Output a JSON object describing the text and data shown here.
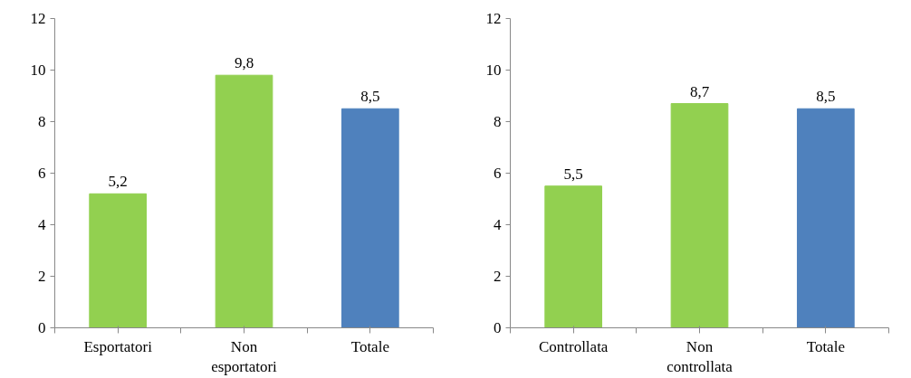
{
  "chart_data": [
    {
      "type": "bar",
      "categories": [
        "Esportatori",
        "Non\nesportatori",
        "Totale"
      ],
      "values": [
        5.2,
        9.8,
        8.5
      ],
      "colors": [
        "#92d050",
        "#92d050",
        "#4f81bd"
      ],
      "value_labels": [
        "5,2",
        "9,8",
        "8,5"
      ],
      "ylim": [
        0,
        12
      ],
      "yticks": [
        0,
        2,
        4,
        6,
        8,
        10,
        12
      ],
      "grid": false
    },
    {
      "type": "bar",
      "categories": [
        "Controllata",
        "Non\ncontrollata",
        "Totale"
      ],
      "values": [
        5.5,
        8.7,
        8.5
      ],
      "colors": [
        "#92d050",
        "#92d050",
        "#4f81bd"
      ],
      "value_labels": [
        "5,5",
        "8,7",
        "8,5"
      ],
      "ylim": [
        0,
        12
      ],
      "yticks": [
        0,
        2,
        4,
        6,
        8,
        10,
        12
      ],
      "grid": false
    }
  ]
}
